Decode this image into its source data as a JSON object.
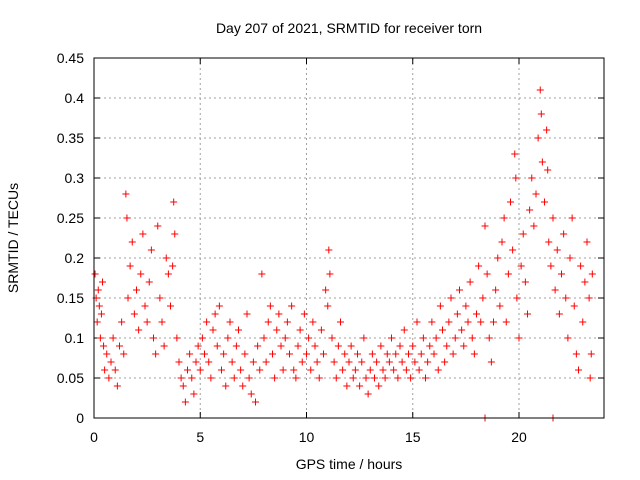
{
  "chart_data": {
    "type": "scatter",
    "title": "Day 207 of 2021, SRMTID for receiver torn",
    "xlabel": "GPS time / hours",
    "ylabel": "SRMTID / TECUs",
    "xlim": [
      0,
      24
    ],
    "ylim": [
      0,
      0.45
    ],
    "xticks": [
      "0",
      "5",
      "10",
      "15",
      "20"
    ],
    "yticks": [
      "0",
      "0.05",
      "0.1",
      "0.15",
      "0.2",
      "0.25",
      "0.3",
      "0.35",
      "0.4",
      "0.45"
    ],
    "grid": true,
    "marker": "plus",
    "color": "#ff0000",
    "series": [
      {
        "points": [
          [
            0.05,
            0.18
          ],
          [
            0.1,
            0.15
          ],
          [
            0.15,
            0.12
          ],
          [
            0.2,
            0.16
          ],
          [
            0.25,
            0.14
          ],
          [
            0.3,
            0.1
          ],
          [
            0.35,
            0.13
          ],
          [
            0.4,
            0.17
          ],
          [
            0.45,
            0.09
          ],
          [
            0.5,
            0.06
          ],
          [
            0.6,
            0.08
          ],
          [
            0.7,
            0.05
          ],
          [
            0.8,
            0.07
          ],
          [
            0.9,
            0.1
          ],
          [
            1.0,
            0.06
          ],
          [
            1.1,
            0.04
          ],
          [
            1.2,
            0.09
          ],
          [
            1.3,
            0.12
          ],
          [
            1.4,
            0.08
          ],
          [
            1.5,
            0.28
          ],
          [
            1.55,
            0.25
          ],
          [
            1.6,
            0.15
          ],
          [
            1.7,
            0.19
          ],
          [
            1.8,
            0.22
          ],
          [
            1.9,
            0.13
          ],
          [
            2.0,
            0.16
          ],
          [
            2.1,
            0.11
          ],
          [
            2.2,
            0.18
          ],
          [
            2.3,
            0.23
          ],
          [
            2.4,
            0.14
          ],
          [
            2.5,
            0.12
          ],
          [
            2.6,
            0.17
          ],
          [
            2.7,
            0.21
          ],
          [
            2.8,
            0.1
          ],
          [
            2.9,
            0.08
          ],
          [
            3.0,
            0.24
          ],
          [
            3.1,
            0.15
          ],
          [
            3.2,
            0.12
          ],
          [
            3.3,
            0.09
          ],
          [
            3.4,
            0.2
          ],
          [
            3.5,
            0.18
          ],
          [
            3.6,
            0.14
          ],
          [
            3.7,
            0.19
          ],
          [
            3.75,
            0.27
          ],
          [
            3.8,
            0.23
          ],
          [
            3.9,
            0.1
          ],
          [
            4.0,
            0.07
          ],
          [
            4.1,
            0.05
          ],
          [
            4.2,
            0.04
          ],
          [
            4.3,
            0.02
          ],
          [
            4.4,
            0.06
          ],
          [
            4.5,
            0.08
          ],
          [
            4.6,
            0.05
          ],
          [
            4.7,
            0.03
          ],
          [
            4.8,
            0.07
          ],
          [
            4.9,
            0.09
          ],
          [
            5.0,
            0.06
          ],
          [
            5.1,
            0.1
          ],
          [
            5.2,
            0.08
          ],
          [
            5.3,
            0.12
          ],
          [
            5.4,
            0.07
          ],
          [
            5.5,
            0.05
          ],
          [
            5.6,
            0.11
          ],
          [
            5.7,
            0.13
          ],
          [
            5.8,
            0.09
          ],
          [
            5.9,
            0.14
          ],
          [
            6.0,
            0.06
          ],
          [
            6.1,
            0.08
          ],
          [
            6.2,
            0.04
          ],
          [
            6.3,
            0.1
          ],
          [
            6.4,
            0.12
          ],
          [
            6.5,
            0.07
          ],
          [
            6.6,
            0.05
          ],
          [
            6.7,
            0.09
          ],
          [
            6.8,
            0.11
          ],
          [
            6.9,
            0.06
          ],
          [
            7.0,
            0.04
          ],
          [
            7.1,
            0.08
          ],
          [
            7.2,
            0.13
          ],
          [
            7.3,
            0.05
          ],
          [
            7.4,
            0.03
          ],
          [
            7.5,
            0.07
          ],
          [
            7.6,
            0.02
          ],
          [
            7.7,
            0.09
          ],
          [
            7.8,
            0.06
          ],
          [
            7.9,
            0.18
          ],
          [
            8.0,
            0.1
          ],
          [
            8.1,
            0.07
          ],
          [
            8.2,
            0.12
          ],
          [
            8.3,
            0.14
          ],
          [
            8.4,
            0.08
          ],
          [
            8.5,
            0.05
          ],
          [
            8.6,
            0.11
          ],
          [
            8.7,
            0.13
          ],
          [
            8.8,
            0.09
          ],
          [
            8.9,
            0.06
          ],
          [
            9.0,
            0.1
          ],
          [
            9.1,
            0.12
          ],
          [
            9.2,
            0.08
          ],
          [
            9.3,
            0.14
          ],
          [
            9.4,
            0.06
          ],
          [
            9.5,
            0.05
          ],
          [
            9.6,
            0.09
          ],
          [
            9.7,
            0.11
          ],
          [
            9.8,
            0.07
          ],
          [
            9.9,
            0.13
          ],
          [
            10.0,
            0.08
          ],
          [
            10.1,
            0.1
          ],
          [
            10.2,
            0.06
          ],
          [
            10.3,
            0.12
          ],
          [
            10.4,
            0.09
          ],
          [
            10.5,
            0.07
          ],
          [
            10.6,
            0.05
          ],
          [
            10.7,
            0.11
          ],
          [
            10.8,
            0.08
          ],
          [
            10.9,
            0.16
          ],
          [
            11.0,
            0.14
          ],
          [
            11.05,
            0.21
          ],
          [
            11.1,
            0.18
          ],
          [
            11.2,
            0.1
          ],
          [
            11.3,
            0.07
          ],
          [
            11.4,
            0.05
          ],
          [
            11.5,
            0.09
          ],
          [
            11.6,
            0.12
          ],
          [
            11.7,
            0.06
          ],
          [
            11.8,
            0.08
          ],
          [
            11.9,
            0.04
          ],
          [
            12.0,
            0.07
          ],
          [
            12.1,
            0.09
          ],
          [
            12.2,
            0.05
          ],
          [
            12.3,
            0.06
          ],
          [
            12.4,
            0.08
          ],
          [
            12.5,
            0.04
          ],
          [
            12.6,
            0.07
          ],
          [
            12.7,
            0.1
          ],
          [
            12.8,
            0.05
          ],
          [
            12.9,
            0.03
          ],
          [
            13.0,
            0.06
          ],
          [
            13.1,
            0.08
          ],
          [
            13.2,
            0.05
          ],
          [
            13.3,
            0.07
          ],
          [
            13.4,
            0.04
          ],
          [
            13.5,
            0.09
          ],
          [
            13.6,
            0.06
          ],
          [
            13.7,
            0.05
          ],
          [
            13.8,
            0.08
          ],
          [
            13.9,
            0.07
          ],
          [
            14.0,
            0.1
          ],
          [
            14.1,
            0.06
          ],
          [
            14.2,
            0.08
          ],
          [
            14.3,
            0.05
          ],
          [
            14.4,
            0.09
          ],
          [
            14.5,
            0.07
          ],
          [
            14.6,
            0.11
          ],
          [
            14.7,
            0.06
          ],
          [
            14.8,
            0.08
          ],
          [
            14.9,
            0.05
          ],
          [
            15.0,
            0.09
          ],
          [
            15.1,
            0.07
          ],
          [
            15.2,
            0.12
          ],
          [
            15.3,
            0.06
          ],
          [
            15.4,
            0.08
          ],
          [
            15.5,
            0.1
          ],
          [
            15.6,
            0.05
          ],
          [
            15.7,
            0.07
          ],
          [
            15.8,
            0.09
          ],
          [
            15.9,
            0.12
          ],
          [
            16.0,
            0.08
          ],
          [
            16.1,
            0.1
          ],
          [
            16.2,
            0.06
          ],
          [
            16.3,
            0.14
          ],
          [
            16.4,
            0.11
          ],
          [
            16.5,
            0.07
          ],
          [
            16.6,
            0.09
          ],
          [
            16.7,
            0.12
          ],
          [
            16.8,
            0.15
          ],
          [
            16.9,
            0.08
          ],
          [
            17.0,
            0.1
          ],
          [
            17.1,
            0.13
          ],
          [
            17.2,
            0.16
          ],
          [
            17.3,
            0.11
          ],
          [
            17.4,
            0.09
          ],
          [
            17.5,
            0.14
          ],
          [
            17.6,
            0.12
          ],
          [
            17.7,
            0.17
          ],
          [
            17.8,
            0.1
          ],
          [
            17.9,
            0.08
          ],
          [
            18.0,
            0.13
          ],
          [
            18.1,
            0.19
          ],
          [
            18.2,
            0.12
          ],
          [
            18.3,
            0.15
          ],
          [
            18.4,
            0.24
          ],
          [
            18.5,
            0.18
          ],
          [
            18.6,
            0.1
          ],
          [
            18.7,
            0.07
          ],
          [
            18.8,
            0.12
          ],
          [
            18.9,
            0.16
          ],
          [
            19.0,
            0.2
          ],
          [
            19.1,
            0.14
          ],
          [
            19.2,
            0.22
          ],
          [
            19.3,
            0.25
          ],
          [
            19.4,
            0.12
          ],
          [
            19.5,
            0.18
          ],
          [
            19.6,
            0.27
          ],
          [
            19.7,
            0.21
          ],
          [
            19.8,
            0.33
          ],
          [
            19.85,
            0.3
          ],
          [
            19.9,
            0.15
          ],
          [
            20.0,
            0.1
          ],
          [
            20.1,
            0.19
          ],
          [
            20.2,
            0.23
          ],
          [
            20.3,
            0.17
          ],
          [
            20.4,
            0.13
          ],
          [
            20.5,
            0.26
          ],
          [
            20.6,
            0.3
          ],
          [
            20.7,
            0.24
          ],
          [
            20.8,
            0.28
          ],
          [
            20.9,
            0.35
          ],
          [
            21.0,
            0.41
          ],
          [
            21.05,
            0.38
          ],
          [
            21.1,
            0.32
          ],
          [
            21.2,
            0.27
          ],
          [
            21.3,
            0.36
          ],
          [
            21.35,
            0.31
          ],
          [
            21.4,
            0.22
          ],
          [
            21.5,
            0.19
          ],
          [
            21.6,
            0.25
          ],
          [
            21.7,
            0.16
          ],
          [
            21.8,
            0.21
          ],
          [
            21.9,
            0.13
          ],
          [
            22.0,
            0.18
          ],
          [
            22.1,
            0.23
          ],
          [
            22.2,
            0.15
          ],
          [
            22.3,
            0.1
          ],
          [
            22.4,
            0.2
          ],
          [
            22.5,
            0.25
          ],
          [
            22.6,
            0.14
          ],
          [
            22.7,
            0.08
          ],
          [
            22.8,
            0.06
          ],
          [
            22.9,
            0.19
          ],
          [
            23.0,
            0.12
          ],
          [
            23.1,
            0.17
          ],
          [
            23.2,
            0.22
          ],
          [
            23.3,
            0.15
          ],
          [
            23.35,
            0.05
          ],
          [
            23.4,
            0.08
          ],
          [
            23.45,
            0.18
          ],
          [
            18.4,
            0.0
          ],
          [
            21.6,
            0.0
          ]
        ]
      }
    ]
  }
}
